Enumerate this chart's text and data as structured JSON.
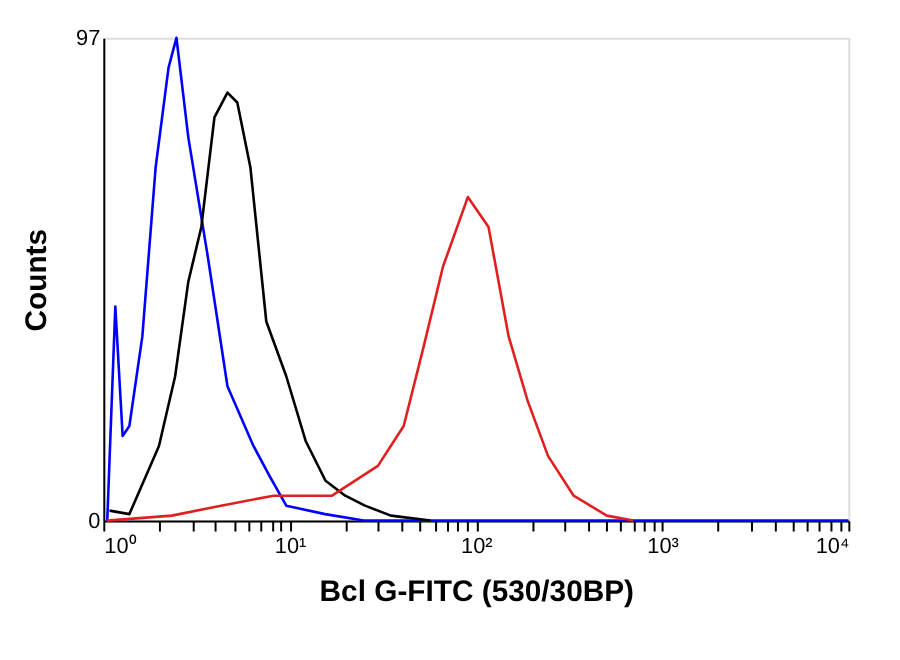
{
  "chart_data": {
    "type": "line",
    "xlabel": "Bcl G-FITC (530/30BP)",
    "ylabel": "Counts",
    "log": "x",
    "grid": false,
    "marker": "none",
    "line_style": "solid",
    "xlim": [
      1,
      10000
    ],
    "ylim": [
      0,
      97
    ],
    "yticks": [
      0,
      97
    ],
    "xticks": [
      {
        "value": 1,
        "label": "10⁰"
      },
      {
        "value": 2,
        "label": null
      },
      {
        "value": 3,
        "label": null
      },
      {
        "value": 4,
        "label": null
      },
      {
        "value": 5,
        "label": null
      },
      {
        "value": 6,
        "label": null
      },
      {
        "value": 7,
        "label": null
      },
      {
        "value": 8,
        "label": null
      },
      {
        "value": 9,
        "label": null
      },
      {
        "value": 10,
        "label": "10¹"
      },
      {
        "value": 20,
        "label": null
      },
      {
        "value": 30,
        "label": null
      },
      {
        "value": 40,
        "label": null
      },
      {
        "value": 50,
        "label": null
      },
      {
        "value": 60,
        "label": null
      },
      {
        "value": 70,
        "label": null
      },
      {
        "value": 80,
        "label": null
      },
      {
        "value": 90,
        "label": null
      },
      {
        "value": 100,
        "label": "10²"
      },
      {
        "value": 200,
        "label": null
      },
      {
        "value": 300,
        "label": null
      },
      {
        "value": 400,
        "label": null
      },
      {
        "value": 500,
        "label": null
      },
      {
        "value": 600,
        "label": null
      },
      {
        "value": 700,
        "label": null
      },
      {
        "value": 800,
        "label": null
      },
      {
        "value": 900,
        "label": null
      },
      {
        "value": 1000,
        "label": "10³"
      },
      {
        "value": 2000,
        "label": null
      },
      {
        "value": 3000,
        "label": null
      },
      {
        "value": 4000,
        "label": null
      },
      {
        "value": 5000,
        "label": null
      },
      {
        "value": 6000,
        "label": null
      },
      {
        "value": 7000,
        "label": null
      },
      {
        "value": 8000,
        "label": null
      },
      {
        "value": 9000,
        "label": null
      },
      {
        "value": 10000,
        "label": "10⁴"
      }
    ],
    "series": [
      {
        "color": "#0000ff",
        "x": [
          1.05,
          1.16,
          1.27,
          1.38,
          1.62,
          1.91,
          2.24,
          2.47,
          2.86,
          3.64,
          4.64,
          6.4,
          7.8,
          9.6,
          15.5,
          25,
          10000
        ],
        "values": [
          0,
          43,
          17,
          19,
          37,
          71,
          91,
          97,
          77,
          53,
          27,
          15,
          9,
          3,
          1.3,
          0,
          0
        ]
      },
      {
        "color": "#000000",
        "x": [
          1.08,
          1.38,
          1.99,
          2.43,
          2.86,
          3.36,
          3.95,
          4.64,
          5.24,
          6.16,
          7.5,
          9.6,
          12.2,
          15.6,
          19.9,
          25.4,
          35,
          57
        ],
        "values": [
          2,
          1.3,
          15,
          29,
          48,
          59,
          81,
          86,
          84,
          71,
          40,
          29,
          16,
          8,
          5,
          3,
          1,
          0
        ]
      },
      {
        "color": "#e02020",
        "x": [
          1.05,
          2.33,
          4.28,
          8.2,
          16.9,
          29.8,
          41,
          52.5,
          66.6,
          90.6,
          117,
          150,
          190,
          244,
          335,
          505,
          700
        ],
        "values": [
          0,
          1,
          3,
          5,
          5,
          11,
          19,
          35,
          51,
          65,
          59,
          37,
          24,
          13,
          5,
          1,
          0
        ]
      }
    ]
  }
}
